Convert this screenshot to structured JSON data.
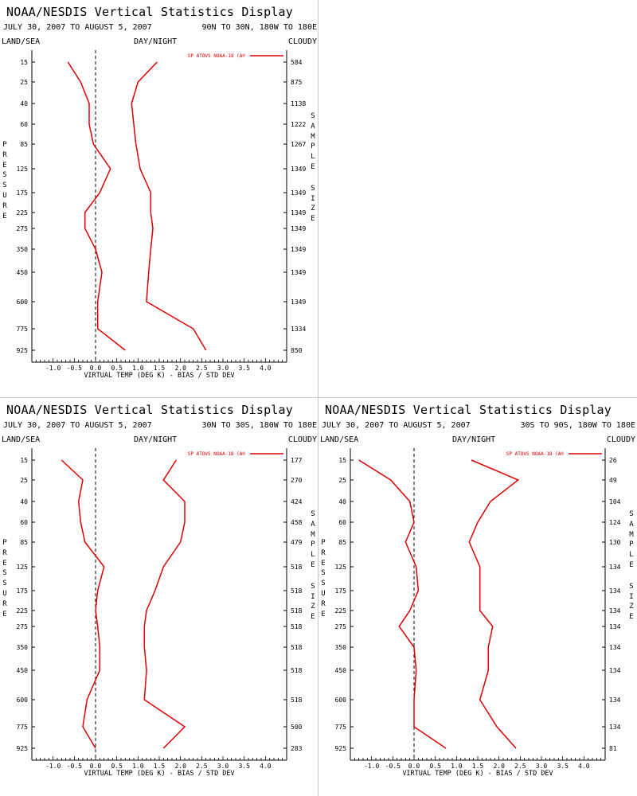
{
  "axis_label": "VIRTUAL TEMP (DEG K) - BIAS / STD DEV",
  "left_label": "LAND/SEA",
  "mid_label": "DAY/NIGHT",
  "right_label": "CLOUDY",
  "pressure_word": "PRESSURE",
  "sample_word": "SAMPLE SIZE",
  "colors": {
    "line": "#dd0000",
    "axis": "#000000",
    "zero_line": "#000000"
  },
  "chart_data": [
    {
      "type": "line",
      "title": "NOAA/NESDIS Vertical Statistics Display",
      "date": "JULY 30, 2007 TO AUGUST 5, 2007",
      "region": "90N TO 30N, 180W TO 180E",
      "legend": "SP ATOVS NOAA-18 (A®",
      "xlim": [
        -1.5,
        4.5
      ],
      "x_ticks": [
        "-1.0",
        "-0.5",
        "0.0",
        "0.5",
        "1.0",
        "1.5",
        "2.0",
        "2.5",
        "3.0",
        "3.5",
        "4.0"
      ],
      "pressure_levels": [
        "15",
        "25",
        "40",
        "60",
        "85",
        "125",
        "175",
        "225",
        "275",
        "350",
        "450",
        "600",
        "775",
        "925"
      ],
      "sample_size": [
        "584",
        "875",
        "1138",
        "1222",
        "1267",
        "1349",
        "1349",
        "1349",
        "1349",
        "1349",
        "1349",
        "1349",
        "1334",
        "850"
      ],
      "series": [
        {
          "values": [
            -0.65,
            -0.35,
            -0.15,
            -0.15,
            -0.05,
            0.35,
            0.1,
            -0.25,
            -0.25,
            0.0,
            0.15,
            0.05,
            0.05,
            0.7
          ]
        },
        {
          "values": [
            1.45,
            1.0,
            0.85,
            0.9,
            0.95,
            1.05,
            1.3,
            1.3,
            1.35,
            1.3,
            1.25,
            1.2,
            2.3,
            2.6
          ]
        }
      ]
    },
    {
      "type": "line",
      "title": "NOAA/NESDIS Vertical Statistics Display",
      "date": "JULY 30, 2007 TO AUGUST 5, 2007",
      "region": "30N TO 30S, 180W TO 180E",
      "legend": "SP ATOVS NOAA-18 (A®",
      "xlim": [
        -1.5,
        4.5
      ],
      "x_ticks": [
        "-1.0",
        "-0.5",
        "0.0",
        "0.5",
        "1.0",
        "1.5",
        "2.0",
        "2.5",
        "3.0",
        "3.5",
        "4.0"
      ],
      "pressure_levels": [
        "15",
        "25",
        "40",
        "60",
        "85",
        "125",
        "175",
        "225",
        "275",
        "350",
        "450",
        "600",
        "775",
        "925"
      ],
      "sample_size": [
        "177",
        "270",
        "424",
        "458",
        "479",
        "518",
        "518",
        "518",
        "518",
        "518",
        "518",
        "518",
        "500",
        "283"
      ],
      "series": [
        {
          "values": [
            -0.8,
            -0.3,
            -0.4,
            -0.35,
            -0.25,
            0.2,
            0.05,
            0.0,
            0.05,
            0.1,
            0.1,
            -0.2,
            -0.3,
            0.0
          ]
        },
        {
          "values": [
            1.9,
            1.6,
            2.1,
            2.1,
            2.0,
            1.6,
            1.4,
            1.2,
            1.15,
            1.15,
            1.2,
            1.15,
            2.1,
            1.6
          ]
        }
      ]
    },
    {
      "type": "line",
      "title": "NOAA/NESDIS Vertical Statistics Display",
      "date": "JULY 30, 2007 TO AUGUST 5, 2007",
      "region": "30S TO 90S, 180W TO 180E",
      "legend": "SP ATOVS NOAA-18 (A®",
      "xlim": [
        -1.5,
        4.5
      ],
      "x_ticks": [
        "-1.0",
        "-0.5",
        "0.0",
        "0.5",
        "1.0",
        "1.5",
        "2.0",
        "2.5",
        "3.0",
        "3.5",
        "4.0"
      ],
      "pressure_levels": [
        "15",
        "25",
        "40",
        "60",
        "85",
        "125",
        "175",
        "225",
        "275",
        "350",
        "450",
        "600",
        "775",
        "925"
      ],
      "sample_size": [
        "26",
        "49",
        "104",
        "124",
        "130",
        "134",
        "134",
        "134",
        "134",
        "134",
        "134",
        "134",
        "134",
        "81"
      ],
      "series": [
        {
          "values": [
            -1.3,
            -0.55,
            -0.1,
            0.0,
            -0.2,
            0.05,
            0.1,
            -0.1,
            -0.35,
            0.0,
            0.05,
            0.0,
            0.0,
            0.75
          ]
        },
        {
          "values": [
            1.35,
            2.45,
            1.8,
            1.5,
            1.3,
            1.55,
            1.55,
            1.55,
            1.85,
            1.75,
            1.75,
            1.55,
            1.95,
            2.4
          ]
        }
      ]
    }
  ]
}
